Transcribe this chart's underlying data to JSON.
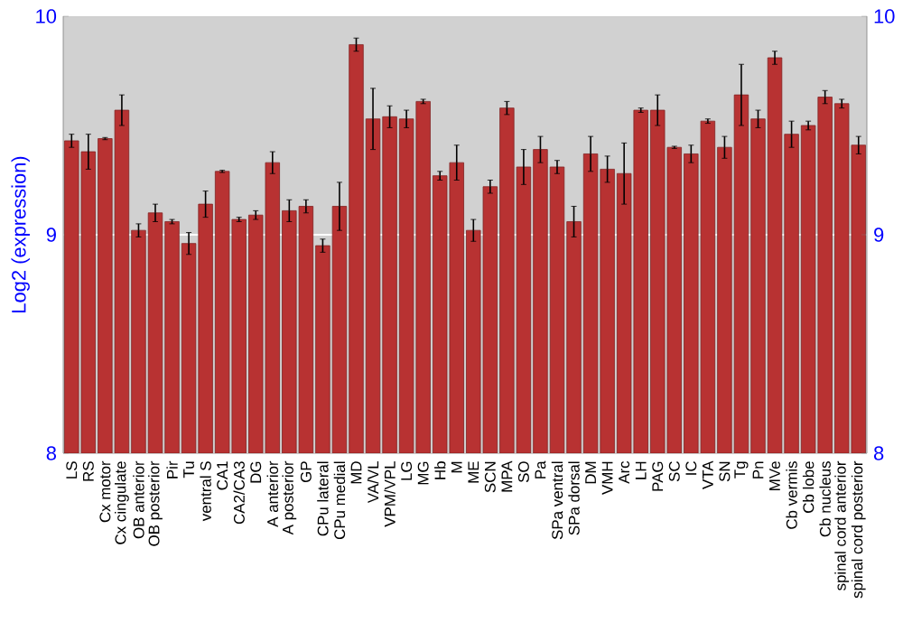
{
  "chart_data": {
    "type": "bar",
    "ylabel": "Log2 (expression)",
    "categories": [
      "LS",
      "RS",
      "Cx motor",
      "Cx cingulate",
      "OB anterior",
      "OB posterior",
      "Pir",
      "Tu",
      "ventral S",
      "CA1",
      "CA2/CA3",
      "DG",
      "A anterior",
      "A posterior",
      "GP",
      "CPu lateral",
      "CPu medial",
      "MD",
      "VA/VL",
      "VPM/VPL",
      "LG",
      "MG",
      "Hb",
      "M",
      "ME",
      "SCN",
      "MPA",
      "SO",
      "Pa",
      "SPa ventral",
      "SPa dorsal",
      "DM",
      "VMH",
      "Arc",
      "LH",
      "PAG",
      "SC",
      "IC",
      "VTA",
      "SN",
      "Tg",
      "Pn",
      "MVe",
      "Cb vermis",
      "Cb lobe",
      "Cb nucleus",
      "spinal cord anterior",
      "spinal cord posterior"
    ],
    "values": [
      9.43,
      9.38,
      9.44,
      9.57,
      9.02,
      9.1,
      9.06,
      8.96,
      9.14,
      9.29,
      9.07,
      9.09,
      9.33,
      9.11,
      9.13,
      8.95,
      9.13,
      9.87,
      9.53,
      9.54,
      9.53,
      9.61,
      9.27,
      9.33,
      9.02,
      9.22,
      9.58,
      9.31,
      9.39,
      9.31,
      9.06,
      9.37,
      9.3,
      9.28,
      9.57,
      9.57,
      9.4,
      9.37,
      9.52,
      9.4,
      9.64,
      9.53,
      9.81,
      9.46,
      9.5,
      9.63,
      9.6,
      9.41
    ],
    "errors": [
      0.03,
      0.08,
      0.005,
      0.07,
      0.03,
      0.04,
      0.01,
      0.05,
      0.06,
      0.005,
      0.01,
      0.02,
      0.05,
      0.05,
      0.03,
      0.03,
      0.11,
      0.03,
      0.14,
      0.05,
      0.04,
      0.01,
      0.02,
      0.08,
      0.05,
      0.03,
      0.03,
      0.08,
      0.06,
      0.03,
      0.07,
      0.08,
      0.06,
      0.14,
      0.01,
      0.07,
      0.005,
      0.04,
      0.01,
      0.05,
      0.14,
      0.04,
      0.03,
      0.06,
      0.02,
      0.03,
      0.02,
      0.04
    ],
    "color": "#b83232",
    "ylim": [
      8,
      10
    ],
    "yticks": [
      8,
      9,
      10
    ],
    "y2lim": [
      8,
      10
    ],
    "y2ticks": [
      8,
      9,
      10
    ],
    "grid": "y"
  }
}
